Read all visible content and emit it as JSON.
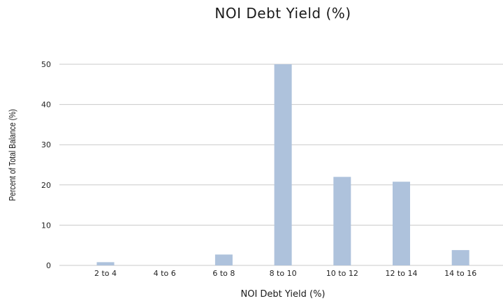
{
  "chart_data": {
    "type": "bar",
    "title": "NOI Debt Yield (%)",
    "xlabel": "NOI Debt Yield (%)",
    "ylabel": "Percent of Total Balance (%)",
    "categories": [
      "2 to 4",
      "4 to 6",
      "6 to 8",
      "8 to 10",
      "10 to 12",
      "12 to 14",
      "14 to 16"
    ],
    "values": [
      0.8,
      0,
      2.7,
      50,
      22,
      20.8,
      3.8
    ],
    "ylim": [
      0,
      52
    ],
    "yticks": [
      0,
      10,
      20,
      30,
      40,
      50
    ],
    "grid": true,
    "bar_color": "#aec2dc"
  }
}
